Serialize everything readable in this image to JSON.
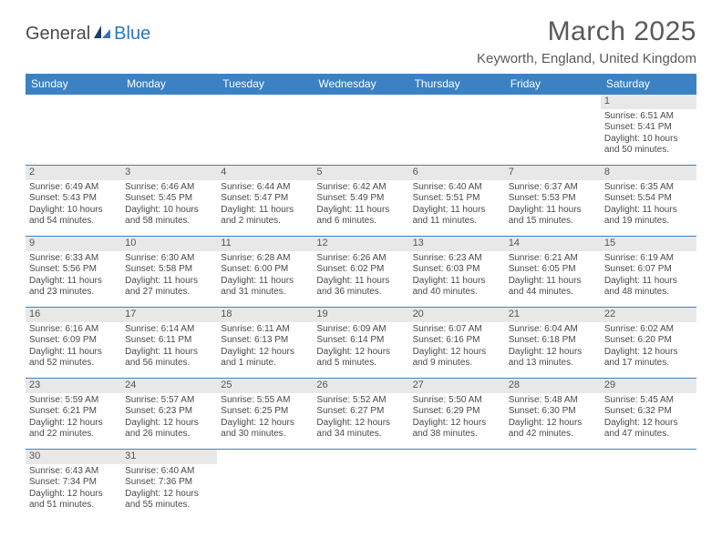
{
  "logo": {
    "text1": "General",
    "text2": "Blue"
  },
  "title": "March 2025",
  "location": "Keyworth, England, United Kingdom",
  "colors": {
    "header_bg": "#3b82c4",
    "header_text": "#ffffff",
    "border": "#3b82c4",
    "daynum_bg": "#e8e8e8",
    "text": "#4a4a4a",
    "logo_blue": "#2f77b7"
  },
  "weekdays": [
    "Sunday",
    "Monday",
    "Tuesday",
    "Wednesday",
    "Thursday",
    "Friday",
    "Saturday"
  ],
  "weeks": [
    [
      null,
      null,
      null,
      null,
      null,
      null,
      {
        "n": "1",
        "sr": "Sunrise: 6:51 AM",
        "ss": "Sunset: 5:41 PM",
        "dl1": "Daylight: 10 hours",
        "dl2": "and 50 minutes."
      }
    ],
    [
      {
        "n": "2",
        "sr": "Sunrise: 6:49 AM",
        "ss": "Sunset: 5:43 PM",
        "dl1": "Daylight: 10 hours",
        "dl2": "and 54 minutes."
      },
      {
        "n": "3",
        "sr": "Sunrise: 6:46 AM",
        "ss": "Sunset: 5:45 PM",
        "dl1": "Daylight: 10 hours",
        "dl2": "and 58 minutes."
      },
      {
        "n": "4",
        "sr": "Sunrise: 6:44 AM",
        "ss": "Sunset: 5:47 PM",
        "dl1": "Daylight: 11 hours",
        "dl2": "and 2 minutes."
      },
      {
        "n": "5",
        "sr": "Sunrise: 6:42 AM",
        "ss": "Sunset: 5:49 PM",
        "dl1": "Daylight: 11 hours",
        "dl2": "and 6 minutes."
      },
      {
        "n": "6",
        "sr": "Sunrise: 6:40 AM",
        "ss": "Sunset: 5:51 PM",
        "dl1": "Daylight: 11 hours",
        "dl2": "and 11 minutes."
      },
      {
        "n": "7",
        "sr": "Sunrise: 6:37 AM",
        "ss": "Sunset: 5:53 PM",
        "dl1": "Daylight: 11 hours",
        "dl2": "and 15 minutes."
      },
      {
        "n": "8",
        "sr": "Sunrise: 6:35 AM",
        "ss": "Sunset: 5:54 PM",
        "dl1": "Daylight: 11 hours",
        "dl2": "and 19 minutes."
      }
    ],
    [
      {
        "n": "9",
        "sr": "Sunrise: 6:33 AM",
        "ss": "Sunset: 5:56 PM",
        "dl1": "Daylight: 11 hours",
        "dl2": "and 23 minutes."
      },
      {
        "n": "10",
        "sr": "Sunrise: 6:30 AM",
        "ss": "Sunset: 5:58 PM",
        "dl1": "Daylight: 11 hours",
        "dl2": "and 27 minutes."
      },
      {
        "n": "11",
        "sr": "Sunrise: 6:28 AM",
        "ss": "Sunset: 6:00 PM",
        "dl1": "Daylight: 11 hours",
        "dl2": "and 31 minutes."
      },
      {
        "n": "12",
        "sr": "Sunrise: 6:26 AM",
        "ss": "Sunset: 6:02 PM",
        "dl1": "Daylight: 11 hours",
        "dl2": "and 36 minutes."
      },
      {
        "n": "13",
        "sr": "Sunrise: 6:23 AM",
        "ss": "Sunset: 6:03 PM",
        "dl1": "Daylight: 11 hours",
        "dl2": "and 40 minutes."
      },
      {
        "n": "14",
        "sr": "Sunrise: 6:21 AM",
        "ss": "Sunset: 6:05 PM",
        "dl1": "Daylight: 11 hours",
        "dl2": "and 44 minutes."
      },
      {
        "n": "15",
        "sr": "Sunrise: 6:19 AM",
        "ss": "Sunset: 6:07 PM",
        "dl1": "Daylight: 11 hours",
        "dl2": "and 48 minutes."
      }
    ],
    [
      {
        "n": "16",
        "sr": "Sunrise: 6:16 AM",
        "ss": "Sunset: 6:09 PM",
        "dl1": "Daylight: 11 hours",
        "dl2": "and 52 minutes."
      },
      {
        "n": "17",
        "sr": "Sunrise: 6:14 AM",
        "ss": "Sunset: 6:11 PM",
        "dl1": "Daylight: 11 hours",
        "dl2": "and 56 minutes."
      },
      {
        "n": "18",
        "sr": "Sunrise: 6:11 AM",
        "ss": "Sunset: 6:13 PM",
        "dl1": "Daylight: 12 hours",
        "dl2": "and 1 minute."
      },
      {
        "n": "19",
        "sr": "Sunrise: 6:09 AM",
        "ss": "Sunset: 6:14 PM",
        "dl1": "Daylight: 12 hours",
        "dl2": "and 5 minutes."
      },
      {
        "n": "20",
        "sr": "Sunrise: 6:07 AM",
        "ss": "Sunset: 6:16 PM",
        "dl1": "Daylight: 12 hours",
        "dl2": "and 9 minutes."
      },
      {
        "n": "21",
        "sr": "Sunrise: 6:04 AM",
        "ss": "Sunset: 6:18 PM",
        "dl1": "Daylight: 12 hours",
        "dl2": "and 13 minutes."
      },
      {
        "n": "22",
        "sr": "Sunrise: 6:02 AM",
        "ss": "Sunset: 6:20 PM",
        "dl1": "Daylight: 12 hours",
        "dl2": "and 17 minutes."
      }
    ],
    [
      {
        "n": "23",
        "sr": "Sunrise: 5:59 AM",
        "ss": "Sunset: 6:21 PM",
        "dl1": "Daylight: 12 hours",
        "dl2": "and 22 minutes."
      },
      {
        "n": "24",
        "sr": "Sunrise: 5:57 AM",
        "ss": "Sunset: 6:23 PM",
        "dl1": "Daylight: 12 hours",
        "dl2": "and 26 minutes."
      },
      {
        "n": "25",
        "sr": "Sunrise: 5:55 AM",
        "ss": "Sunset: 6:25 PM",
        "dl1": "Daylight: 12 hours",
        "dl2": "and 30 minutes."
      },
      {
        "n": "26",
        "sr": "Sunrise: 5:52 AM",
        "ss": "Sunset: 6:27 PM",
        "dl1": "Daylight: 12 hours",
        "dl2": "and 34 minutes."
      },
      {
        "n": "27",
        "sr": "Sunrise: 5:50 AM",
        "ss": "Sunset: 6:29 PM",
        "dl1": "Daylight: 12 hours",
        "dl2": "and 38 minutes."
      },
      {
        "n": "28",
        "sr": "Sunrise: 5:48 AM",
        "ss": "Sunset: 6:30 PM",
        "dl1": "Daylight: 12 hours",
        "dl2": "and 42 minutes."
      },
      {
        "n": "29",
        "sr": "Sunrise: 5:45 AM",
        "ss": "Sunset: 6:32 PM",
        "dl1": "Daylight: 12 hours",
        "dl2": "and 47 minutes."
      }
    ],
    [
      {
        "n": "30",
        "sr": "Sunrise: 6:43 AM",
        "ss": "Sunset: 7:34 PM",
        "dl1": "Daylight: 12 hours",
        "dl2": "and 51 minutes."
      },
      {
        "n": "31",
        "sr": "Sunrise: 6:40 AM",
        "ss": "Sunset: 7:36 PM",
        "dl1": "Daylight: 12 hours",
        "dl2": "and 55 minutes."
      },
      null,
      null,
      null,
      null,
      null
    ]
  ]
}
